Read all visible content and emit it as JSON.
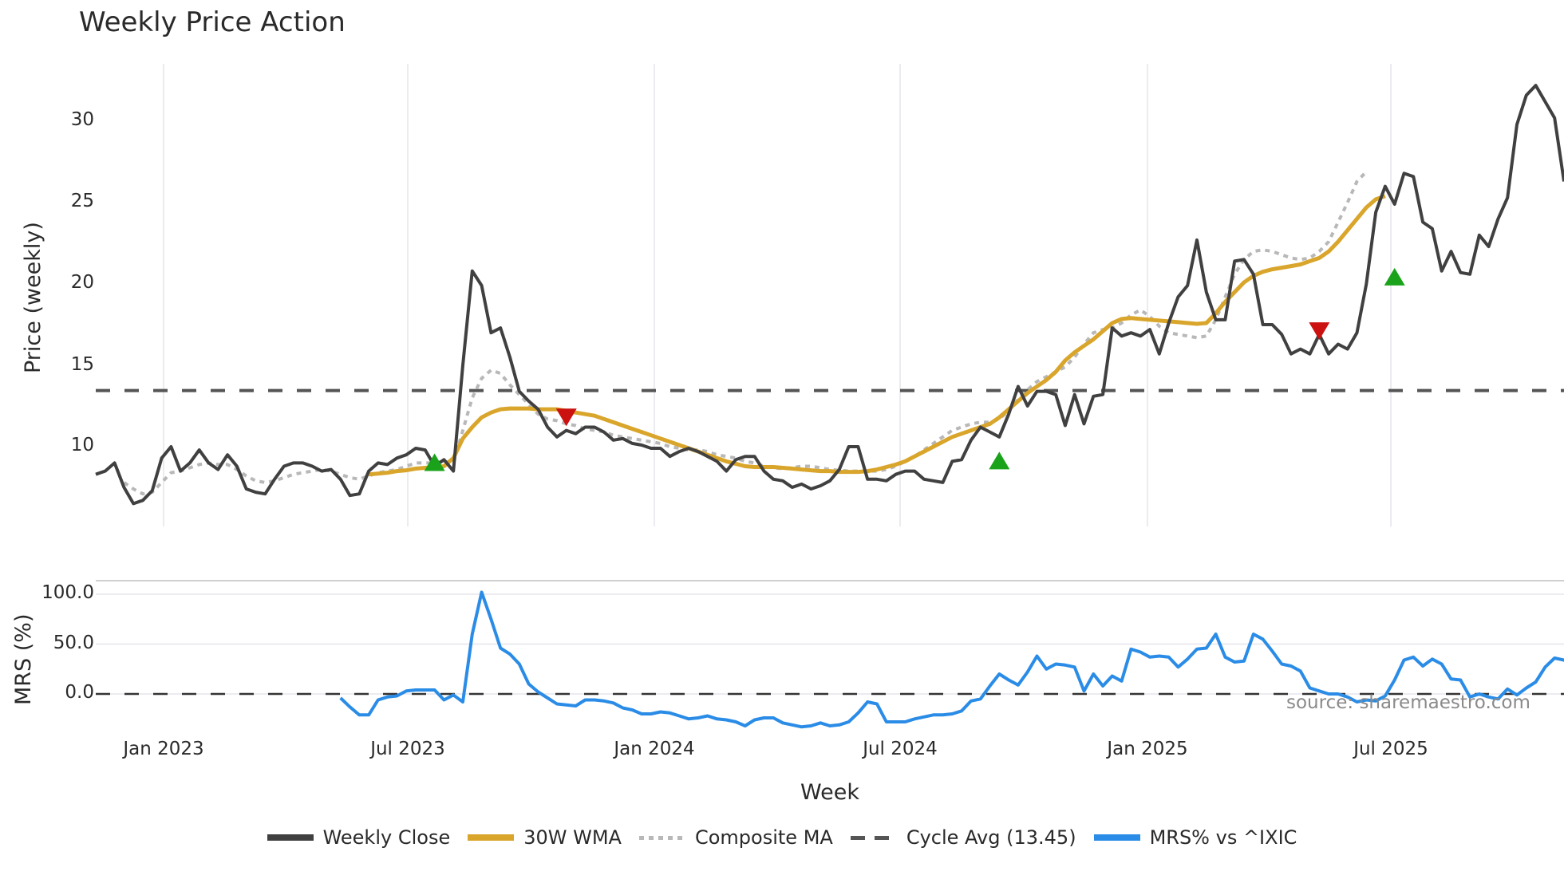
{
  "title": "Weekly Price Action",
  "price_panel": {
    "ylabel": "Price (weekly)",
    "yticks": [
      "30",
      "25",
      "20",
      "15",
      "10"
    ]
  },
  "mrs_panel": {
    "ylabel": "MRS (%)",
    "yticks": [
      "100.0",
      "50.0",
      "0.0"
    ]
  },
  "xaxis": {
    "label": "Week",
    "ticks": [
      "Jan 2023",
      "Jul 2023",
      "Jan 2024",
      "Jul 2024",
      "Jan 2025",
      "Jul 2025"
    ]
  },
  "source": "source: sharemaestro.com",
  "legend": [
    {
      "label": "Weekly Close",
      "color": "#404040",
      "style": "solid"
    },
    {
      "label": "30W WMA",
      "color": "#d9a52b",
      "style": "solid"
    },
    {
      "label": "Composite MA",
      "color": "#b8b8b8",
      "style": "dotted"
    },
    {
      "label": "Cycle Avg (13.45)",
      "color": "#555555",
      "style": "dashed"
    },
    {
      "label": "MRS% vs ^IXIC",
      "color": "#2a8ce6",
      "style": "solid"
    }
  ],
  "colors": {
    "close": "#404040",
    "wma": "#d9a52b",
    "composite": "#b8b8b8",
    "cycle": "#555555",
    "mrs": "#2a8ce6",
    "buy_marker": "#1aa31a",
    "sell_marker": "#cc1111",
    "grid": "#ebebf0"
  },
  "chart_data": [
    {
      "type": "line",
      "title": "Weekly Price Action",
      "xlabel": "Week",
      "ylabel": "Price (weekly)",
      "ylim": [
        5,
        33
      ],
      "x_ticks": [
        "Jan 2023",
        "Jul 2023",
        "Jan 2024",
        "Jul 2024",
        "Jan 2025",
        "Jul 2025"
      ],
      "x_start": "2022-11-14",
      "x_step": "1 week",
      "series": [
        {
          "name": "Weekly Close",
          "values": [
            8.3,
            8.5,
            9.0,
            7.5,
            6.5,
            6.7,
            7.3,
            9.3,
            10.0,
            8.5,
            9.0,
            9.8,
            9.0,
            8.6,
            9.5,
            8.8,
            7.4,
            7.2,
            7.1,
            8.0,
            8.8,
            9.0,
            9.0,
            8.8,
            8.5,
            8.6,
            8.0,
            7.0,
            7.1,
            8.5,
            9.0,
            8.9,
            9.3,
            9.5,
            9.9,
            9.8,
            8.8,
            9.2,
            8.5,
            15.0,
            20.8,
            19.9,
            17.0,
            17.3,
            15.5,
            13.4,
            12.8,
            12.3,
            11.2,
            10.6,
            11.0,
            10.8,
            11.2,
            11.2,
            10.9,
            10.4,
            10.5,
            10.2,
            10.1,
            9.9,
            9.9,
            9.4,
            9.7,
            9.9,
            9.7,
            9.4,
            9.1,
            8.5,
            9.2,
            9.4,
            9.4,
            8.5,
            8.0,
            7.9,
            7.5,
            7.7,
            7.4,
            7.6,
            7.9,
            8.6,
            10.0,
            10.0,
            8.0,
            8.0,
            7.9,
            8.3,
            8.5,
            8.5,
            8.0,
            7.9,
            7.8,
            9.1,
            9.2,
            10.4,
            11.2,
            10.9,
            10.6,
            12.0,
            13.7,
            12.5,
            13.4,
            13.4,
            13.2,
            11.3,
            13.2,
            11.4,
            13.1,
            13.2,
            17.3,
            16.8,
            17.0,
            16.8,
            17.2,
            15.7,
            17.6,
            19.2,
            19.9,
            22.7,
            19.5,
            17.8,
            17.8,
            21.4,
            21.5,
            20.6,
            17.5,
            17.5,
            16.9,
            15.7,
            16.0,
            15.7,
            16.9,
            15.7,
            16.3,
            16.0,
            17.0,
            20.0,
            24.4,
            26.0,
            24.9,
            26.8,
            26.6,
            23.8,
            23.4,
            20.8,
            22.0,
            20.7,
            20.6,
            23.0,
            22.3,
            24.0,
            25.3,
            29.8,
            31.6,
            32.2,
            31.2,
            30.2,
            26.3
          ]
        },
        {
          "name": "30W WMA",
          "start_index": 29,
          "values": [
            8.3,
            8.35,
            8.4,
            8.5,
            8.55,
            8.65,
            8.7,
            8.75,
            8.8,
            9.3,
            10.5,
            11.2,
            11.8,
            12.1,
            12.3,
            12.35,
            12.35,
            12.35,
            12.3,
            12.3,
            12.3,
            12.2,
            12.1,
            12.0,
            11.9,
            11.7,
            11.5,
            11.3,
            11.1,
            10.9,
            10.7,
            10.5,
            10.3,
            10.1,
            9.9,
            9.7,
            9.5,
            9.3,
            9.1,
            8.95,
            8.8,
            8.75,
            8.75,
            8.75,
            8.7,
            8.65,
            8.6,
            8.55,
            8.5,
            8.5,
            8.45,
            8.45,
            8.45,
            8.5,
            8.6,
            8.75,
            8.9,
            9.1,
            9.4,
            9.7,
            10.0,
            10.3,
            10.6,
            10.8,
            11.0,
            11.2,
            11.4,
            11.8,
            12.3,
            12.8,
            13.3,
            13.7,
            14.1,
            14.6,
            15.3,
            15.8,
            16.2,
            16.6,
            17.1,
            17.6,
            17.85,
            17.9,
            17.85,
            17.8,
            17.75,
            17.7,
            17.65,
            17.6,
            17.55,
            17.6,
            18.2,
            18.9,
            19.5,
            20.1,
            20.5,
            20.75,
            20.9,
            21.0,
            21.1,
            21.2,
            21.4,
            21.6,
            22.0,
            22.6,
            23.3,
            24.0,
            24.7,
            25.2,
            25.4
          ]
        },
        {
          "name": "Composite MA",
          "start_index": 3,
          "values": [
            7.8,
            7.4,
            7.1,
            7.2,
            7.8,
            8.4,
            8.5,
            8.7,
            8.9,
            9.0,
            8.9,
            8.9,
            8.6,
            8.2,
            7.9,
            7.8,
            7.9,
            8.1,
            8.3,
            8.4,
            8.5,
            8.6,
            8.5,
            8.3,
            8.1,
            8.0,
            8.2,
            8.4,
            8.5,
            8.6,
            8.8,
            9.0,
            9.0,
            9.0,
            9.1,
            9.0,
            11.0,
            13.0,
            14.2,
            14.7,
            14.5,
            13.8,
            13.2,
            12.6,
            12.0,
            11.7,
            11.6,
            11.4,
            11.3,
            11.1,
            11.0,
            10.9,
            10.7,
            10.6,
            10.5,
            10.4,
            10.3,
            10.2,
            10.0,
            9.9,
            9.8,
            9.8,
            9.7,
            9.5,
            9.4,
            9.3,
            9.1,
            9.0,
            8.8,
            8.7,
            8.65,
            8.7,
            8.8,
            8.8,
            8.7,
            8.6,
            8.55,
            8.5,
            8.5,
            8.5,
            8.5,
            8.6,
            8.8,
            9.1,
            9.4,
            9.8,
            10.2,
            10.6,
            11.0,
            11.2,
            11.4,
            11.5,
            11.5,
            11.7,
            12.2,
            12.9,
            13.5,
            14.0,
            14.3,
            14.6,
            14.9,
            15.5,
            16.3,
            17.0,
            17.2,
            17.3,
            17.6,
            18.1,
            18.4,
            18.0,
            17.4,
            17.0,
            16.9,
            16.8,
            16.7,
            16.8,
            17.8,
            19.2,
            20.6,
            21.5,
            22.0,
            22.1,
            22.0,
            21.8,
            21.6,
            21.5,
            21.6,
            22.0,
            22.6,
            23.8,
            25.0,
            26.3,
            26.9
          ]
        },
        {
          "name": "Cycle Avg (13.45)",
          "values": [
            13.45
          ],
          "style": "horizontal"
        }
      ],
      "markers": [
        {
          "type": "buy",
          "index": 36,
          "value": 8.9
        },
        {
          "type": "sell",
          "index": 50,
          "value": 11.9
        },
        {
          "type": "buy",
          "index": 96,
          "value": 9.0
        },
        {
          "type": "sell",
          "index": 130,
          "value": 17.2
        },
        {
          "type": "buy",
          "index": 138,
          "value": 20.3
        }
      ]
    },
    {
      "type": "line",
      "ylabel": "MRS (%)",
      "ylim": [
        -45,
        110
      ],
      "yticks": [
        0,
        50,
        100
      ],
      "series": [
        {
          "name": "MRS% vs ^IXIC",
          "start_index": 26,
          "values": [
            -4,
            -13,
            -21,
            -21,
            -6,
            -3,
            -2,
            3,
            4,
            4,
            4,
            -6,
            -1,
            -8,
            60,
            102,
            75,
            46,
            40,
            30,
            10,
            2,
            -4,
            -10,
            -11,
            -12,
            -6,
            -6,
            -7,
            -9,
            -14,
            -16,
            -20,
            -20,
            -18,
            -19,
            -22,
            -25,
            -24,
            -22,
            -25,
            -26,
            -28,
            -32,
            -26,
            -24,
            -24,
            -29,
            -31,
            -33,
            -32,
            -29,
            -32,
            -31,
            -28,
            -19,
            -8,
            -10,
            -28,
            -28,
            -28,
            -25,
            -23,
            -21,
            -21,
            -20,
            -17,
            -7,
            -5,
            8,
            20,
            14,
            9,
            22,
            38,
            25,
            30,
            29,
            27,
            3,
            20,
            8,
            18,
            13,
            45,
            42,
            37,
            38,
            37,
            27,
            35,
            45,
            46,
            60,
            37,
            32,
            33,
            60,
            55,
            43,
            30,
            28,
            23,
            6,
            3,
            0,
            0,
            -3,
            -8,
            -6,
            -7,
            -2,
            14,
            34,
            37,
            28,
            35,
            30,
            15,
            14,
            -3,
            0,
            -3,
            -5,
            5,
            -1,
            6,
            12,
            27,
            36,
            34,
            26,
            18,
            4
          ]
        }
      ],
      "reference_line": 0
    }
  ]
}
